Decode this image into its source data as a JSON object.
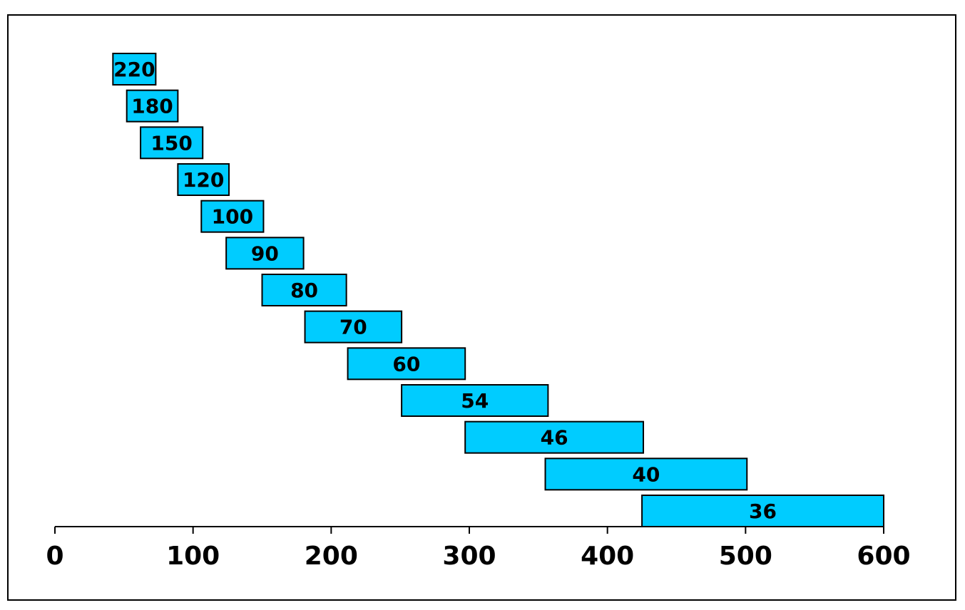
{
  "chart_data": {
    "type": "bar",
    "orientation": "horizontal-range",
    "title": "",
    "xlabel": "",
    "ylabel": "",
    "xlim": [
      0,
      600
    ],
    "xticks": [
      0,
      100,
      200,
      300,
      400,
      500,
      600
    ],
    "tick_labels": [
      "0",
      "100",
      "200",
      "300",
      "400",
      "500",
      "600"
    ],
    "grid": false,
    "legend": "none",
    "bar_color": "#00CCFF",
    "bar_edge_color": "#000000",
    "bars": [
      {
        "label": "220",
        "start": 42,
        "end": 73
      },
      {
        "label": "180",
        "start": 52,
        "end": 89
      },
      {
        "label": "150",
        "start": 62,
        "end": 107
      },
      {
        "label": "120",
        "start": 89,
        "end": 126
      },
      {
        "label": "100",
        "start": 106,
        "end": 151
      },
      {
        "label": "90",
        "start": 124,
        "end": 180
      },
      {
        "label": "80",
        "start": 150,
        "end": 211
      },
      {
        "label": "70",
        "start": 181,
        "end": 251
      },
      {
        "label": "60",
        "start": 212,
        "end": 297
      },
      {
        "label": "54",
        "start": 251,
        "end": 357
      },
      {
        "label": "46",
        "start": 297,
        "end": 426
      },
      {
        "label": "40",
        "start": 355,
        "end": 501
      },
      {
        "label": "36",
        "start": 425,
        "end": 600
      }
    ]
  }
}
